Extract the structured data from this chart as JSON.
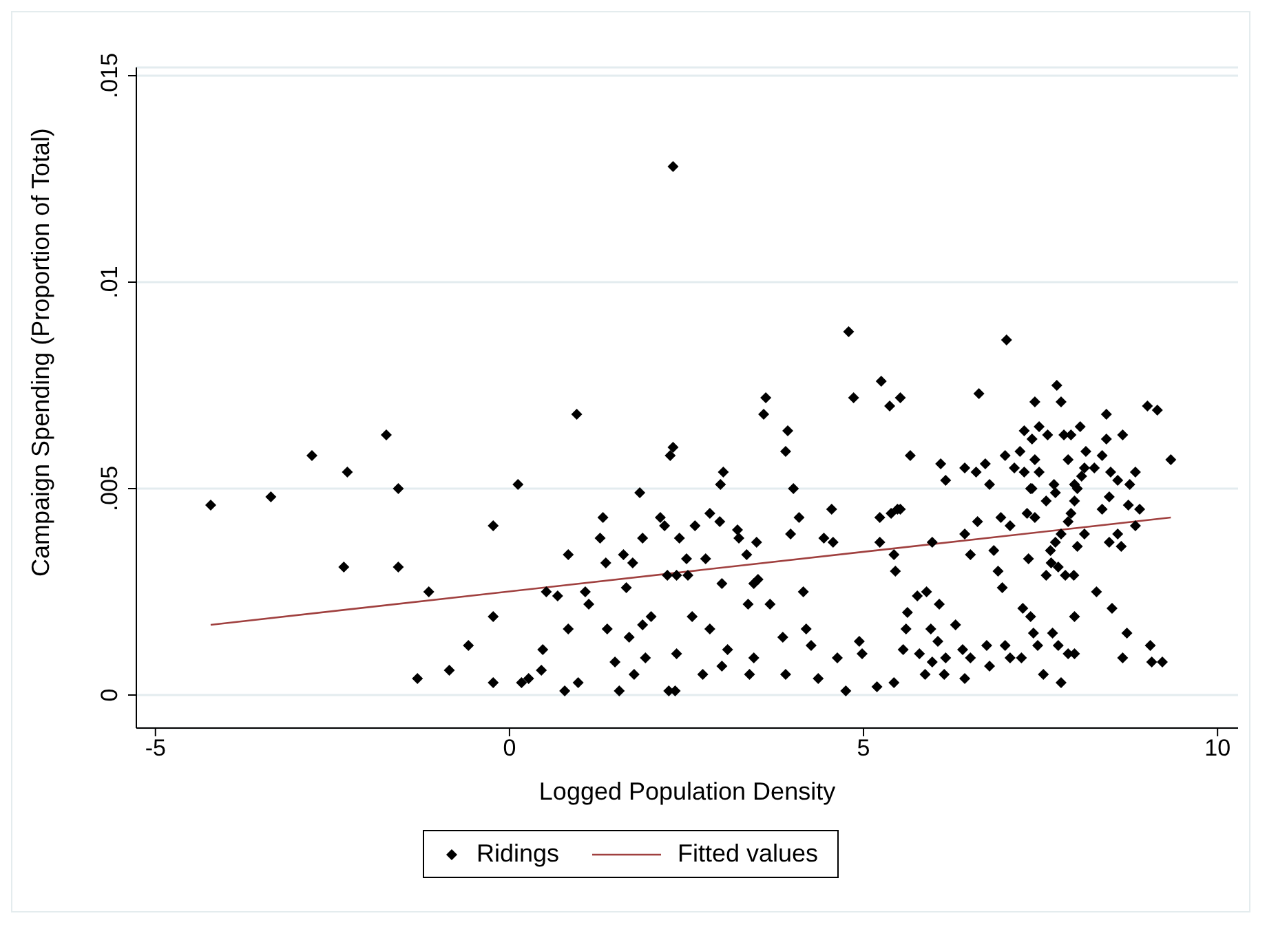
{
  "chart_data": {
    "type": "scatter",
    "xlabel": "Logged Population Density",
    "ylabel": "Campaign Spending (Proportion of Total)",
    "xlim": [
      -5.27,
      10.29
    ],
    "ylim": [
      -0.0008,
      0.0152
    ],
    "xticks": [
      -5,
      0,
      5,
      10
    ],
    "yticks": [
      {
        "value": 0,
        "label": "0"
      },
      {
        "value": 0.005,
        "label": ".005"
      },
      {
        "value": 0.01,
        "label": ".01"
      },
      {
        "value": 0.015,
        "label": ".015"
      }
    ],
    "grid": "y",
    "legend": "bottom",
    "series": [
      {
        "name": "Ridings",
        "color": "#000000",
        "marker": "diamond",
        "x": [
          -4.22,
          -3.37,
          -2.79,
          -2.29,
          -2.34,
          -1.74,
          -1.57,
          -1.57,
          -1.14,
          -1.3,
          -0.85,
          -0.58,
          -0.23,
          -0.23,
          -0.23,
          0.12,
          0.17,
          0.27,
          0.47,
          0.45,
          0.52,
          0.68,
          0.78,
          0.83,
          0.83,
          0.97,
          0.95,
          1.07,
          1.12,
          1.28,
          1.32,
          1.36,
          1.38,
          1.49,
          1.55,
          1.61,
          1.65,
          1.69,
          1.74,
          1.76,
          1.88,
          1.88,
          1.92,
          2.0,
          1.84,
          2.13,
          2.23,
          2.19,
          2.27,
          2.31,
          2.31,
          2.25,
          2.34,
          2.36,
          2.4,
          2.5,
          2.52,
          2.36,
          2.62,
          2.58,
          2.73,
          2.77,
          2.83,
          2.97,
          2.98,
          3.02,
          3.0,
          3.08,
          3.0,
          2.83,
          3.24,
          3.22,
          3.35,
          3.37,
          3.39,
          3.45,
          3.49,
          3.45,
          3.51,
          3.59,
          3.62,
          3.68,
          3.86,
          3.9,
          3.97,
          4.09,
          3.93,
          3.9,
          4.01,
          4.19,
          4.15,
          4.26,
          4.36,
          4.44,
          4.55,
          4.57,
          4.86,
          4.63,
          4.75,
          4.94,
          4.98,
          5.23,
          4.79,
          5.48,
          5.6,
          5.56,
          5.79,
          5.97,
          6.14,
          6.3,
          6.4,
          6.43,
          7.02,
          5.25,
          5.37,
          5.52,
          5.66,
          5.23,
          5.39,
          5.52,
          5.43,
          5.45,
          5.97,
          5.76,
          5.89,
          5.62,
          6.07,
          5.95,
          6.05,
          6.16,
          5.43,
          5.19,
          5.87,
          6.43,
          6.51,
          6.63,
          6.09,
          6.16,
          6.51,
          6.61,
          6.43,
          6.59,
          6.72,
          6.78,
          6.84,
          6.9,
          6.96,
          6.74,
          6.78,
          7.0,
          6.94,
          7.07,
          7.0,
          7.07,
          7.23,
          7.25,
          7.36,
          7.33,
          7.31,
          7.42,
          7.21,
          7.27,
          7.38,
          7.48,
          7.6,
          7.42,
          7.13,
          7.27,
          7.42,
          7.48,
          7.38,
          7.58,
          7.69,
          7.71,
          7.73,
          7.79,
          7.4,
          7.46,
          7.54,
          7.79,
          7.67,
          7.75,
          7.89,
          7.98,
          7.58,
          7.65,
          7.75,
          7.85,
          7.97,
          7.64,
          7.71,
          7.79,
          7.89,
          7.93,
          7.98,
          8.02,
          8.08,
          8.12,
          7.83,
          7.93,
          8.06,
          7.89,
          7.98,
          8.02,
          8.12,
          8.14,
          8.26,
          8.37,
          8.43,
          8.43,
          8.66,
          8.37,
          8.47,
          8.49,
          8.59,
          8.76,
          8.84,
          8.74,
          8.9,
          8.84,
          8.47,
          8.64,
          8.59,
          8.29,
          8.51,
          8.72,
          8.66,
          9.05,
          9.07,
          9.22,
          9.01,
          9.15,
          9.34,
          7.98,
          7.36
        ],
        "values": [
          0.0046,
          0.0048,
          0.0058,
          0.0054,
          0.0031,
          0.0063,
          0.005,
          0.0031,
          0.0025,
          0.0004,
          0.0006,
          0.0012,
          0.0041,
          0.0019,
          0.0003,
          0.0051,
          0.0003,
          0.0004,
          0.0011,
          0.0006,
          0.0025,
          0.0024,
          0.0001,
          0.0034,
          0.0016,
          0.0003,
          0.0068,
          0.0025,
          0.0022,
          0.0038,
          0.0043,
          0.0032,
          0.0016,
          0.0008,
          0.0001,
          0.0034,
          0.0026,
          0.0014,
          0.0032,
          0.0005,
          0.0038,
          0.0017,
          0.0009,
          0.0019,
          0.0049,
          0.0043,
          0.0029,
          0.0041,
          0.0058,
          0.006,
          0.0128,
          0.0001,
          0.0001,
          0.001,
          0.0038,
          0.0033,
          0.0029,
          0.0029,
          0.0041,
          0.0019,
          0.0005,
          0.0033,
          0.0044,
          0.0042,
          0.0051,
          0.0054,
          0.0027,
          0.0011,
          0.0007,
          0.0016,
          0.0038,
          0.004,
          0.0034,
          0.0022,
          0.0005,
          0.0009,
          0.0037,
          0.0027,
          0.0028,
          0.0068,
          0.0072,
          0.0022,
          0.0014,
          0.0005,
          0.0039,
          0.0043,
          0.0064,
          0.0059,
          0.005,
          0.0016,
          0.0025,
          0.0012,
          0.0004,
          0.0038,
          0.0045,
          0.0037,
          0.0072,
          0.0009,
          0.0001,
          0.0013,
          0.001,
          0.0037,
          0.0088,
          0.0045,
          0.0016,
          0.0011,
          0.001,
          0.0008,
          0.0005,
          0.0017,
          0.0011,
          0.0055,
          0.0086,
          0.0076,
          0.007,
          0.0072,
          0.0058,
          0.0043,
          0.0044,
          0.0045,
          0.0034,
          0.003,
          0.0037,
          0.0024,
          0.0025,
          0.002,
          0.0022,
          0.0016,
          0.0013,
          0.0009,
          0.0003,
          0.0002,
          0.0005,
          0.0004,
          0.0009,
          0.0073,
          0.0056,
          0.0052,
          0.0034,
          0.0042,
          0.0039,
          0.0054,
          0.0056,
          0.0051,
          0.0035,
          0.003,
          0.0026,
          0.0012,
          0.0007,
          0.0012,
          0.0043,
          0.0041,
          0.0058,
          0.0009,
          0.0009,
          0.0021,
          0.0019,
          0.0033,
          0.0044,
          0.0043,
          0.0059,
          0.0064,
          0.0062,
          0.0065,
          0.0063,
          0.0071,
          0.0055,
          0.0054,
          0.0057,
          0.0054,
          0.005,
          0.0047,
          0.0051,
          0.0049,
          0.0075,
          0.0071,
          0.0015,
          0.0012,
          0.0005,
          0.0003,
          0.0015,
          0.0012,
          0.001,
          0.001,
          0.0029,
          0.0032,
          0.0031,
          0.0029,
          0.0029,
          0.0035,
          0.0037,
          0.0039,
          0.0042,
          0.0044,
          0.0047,
          0.005,
          0.0053,
          0.0055,
          0.0063,
          0.0063,
          0.0065,
          0.0057,
          0.0051,
          0.0036,
          0.0039,
          0.0059,
          0.0055,
          0.0058,
          0.0062,
          0.0068,
          0.0063,
          0.0045,
          0.0048,
          0.0054,
          0.0052,
          0.0051,
          0.0054,
          0.0046,
          0.0045,
          0.0041,
          0.0037,
          0.0036,
          0.0039,
          0.0025,
          0.0021,
          0.0015,
          0.0009,
          0.0012,
          0.0008,
          0.0008,
          0.007,
          0.0069,
          0.0057,
          0.0019,
          0.005
        ]
      },
      {
        "name": "Fitted values",
        "type": "line",
        "color": "#a0403f",
        "marker": "none",
        "line_style": "solid",
        "x": [
          -4.22,
          9.34
        ],
        "values": [
          0.0017,
          0.0043
        ]
      }
    ]
  }
}
